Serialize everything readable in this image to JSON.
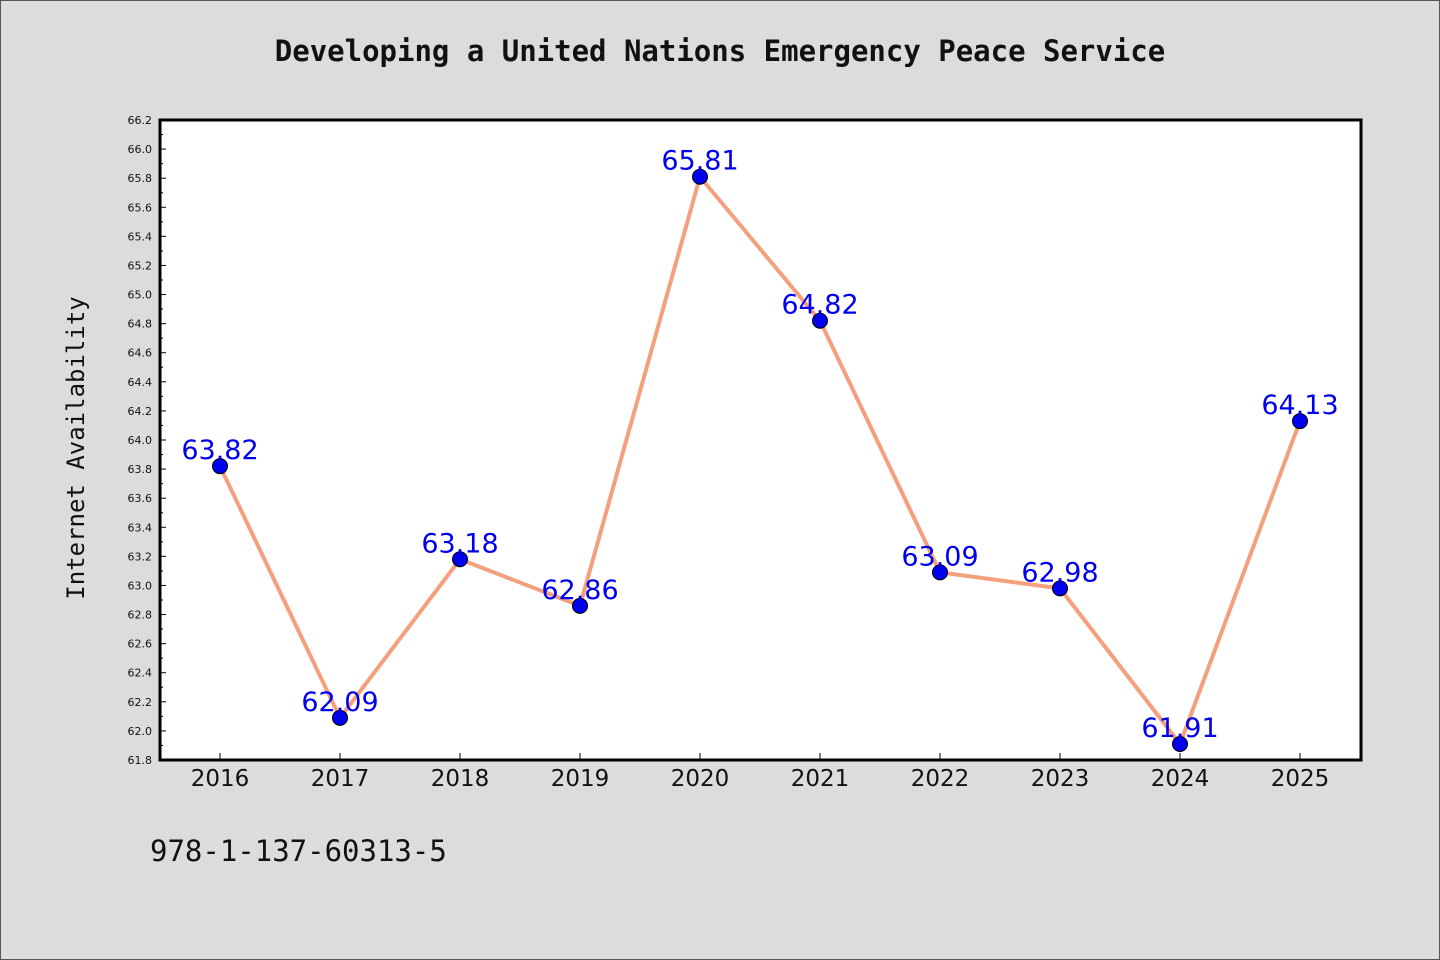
{
  "title": "Developing a United Nations Emergency Peace Service",
  "footer_text": "978-1-137-60313-5",
  "chart_data": {
    "type": "line",
    "title": "Developing a United Nations Emergency Peace Service",
    "xlabel": "",
    "ylabel": "Internet Availability",
    "categories": [
      "2016",
      "2017",
      "2018",
      "2019",
      "2020",
      "2021",
      "2022",
      "2023",
      "2024",
      "2025"
    ],
    "series": [
      {
        "values": [
          63.82,
          62.09,
          63.18,
          62.86,
          65.81,
          64.82,
          63.09,
          62.98,
          61.91,
          64.13
        ],
        "labels": [
          "63.82",
          "62.09",
          "63.18",
          "62.86",
          "65.81",
          "64.82",
          "63.09",
          "62.98",
          "61.91",
          "64.13"
        ],
        "line_color": "#f4a07c",
        "marker_color": "#0000ee"
      }
    ],
    "ylim": [
      61.8,
      66.2
    ],
    "yticks": [
      "61.8",
      "62.0",
      "62.2",
      "62.4",
      "62.6",
      "62.8",
      "63.0",
      "63.2",
      "63.4",
      "63.6",
      "63.8",
      "64.0",
      "64.2",
      "64.4",
      "64.6",
      "64.8",
      "65.0",
      "65.2",
      "65.4",
      "65.6",
      "65.8",
      "66.0",
      "66.2"
    ],
    "grid": false,
    "legend": "none",
    "data_label_color": "#0000ee"
  }
}
